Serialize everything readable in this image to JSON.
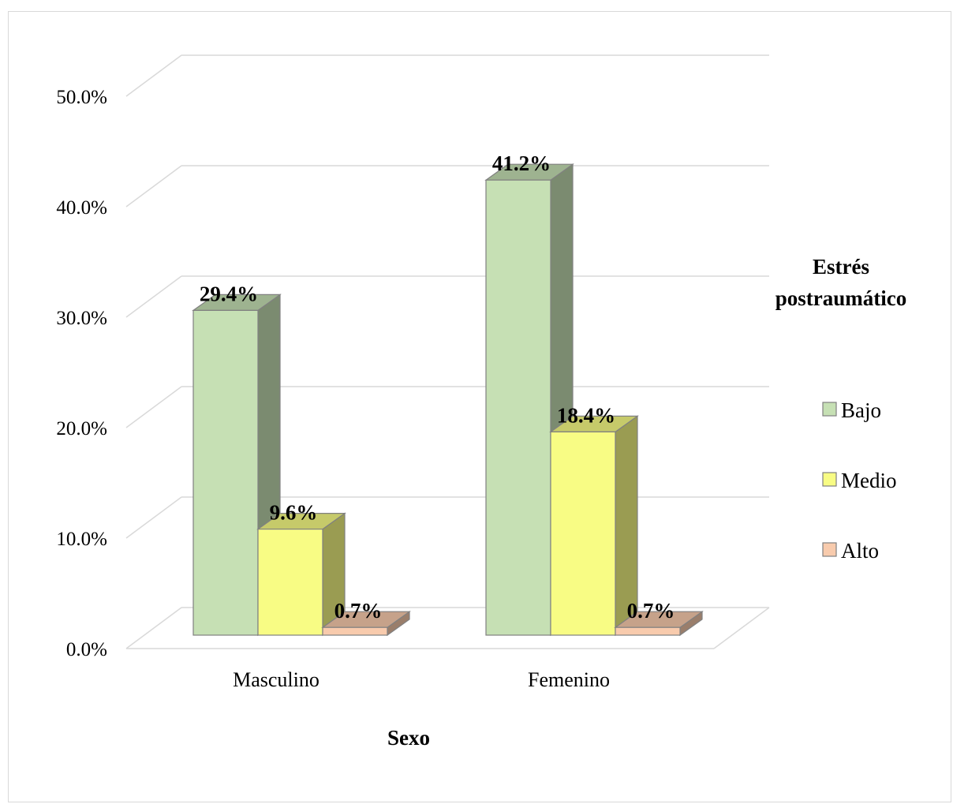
{
  "chart_data": {
    "type": "bar",
    "variant": "3d-clustered-column",
    "categories": [
      "Masculino",
      "Femenino"
    ],
    "series": [
      {
        "name": "Bajo",
        "values": [
          29.4,
          41.2
        ],
        "labels": [
          "29.4%",
          "41.2%"
        ],
        "color": "#c6e0b4"
      },
      {
        "name": "Medio",
        "values": [
          9.6,
          18.4
        ],
        "labels": [
          "9.6%",
          "18.4%"
        ],
        "color": "#f8fc84"
      },
      {
        "name": "Alto",
        "values": [
          0.7,
          0.7
        ],
        "labels": [
          "0.7%",
          "0.7%"
        ],
        "color": "#f8cbad"
      }
    ],
    "xlabel": "Sexo",
    "ylabel": "",
    "ylim": [
      0,
      50
    ],
    "yticks": [
      "0.0%",
      "10.0%",
      "20.0%",
      "30.0%",
      "40.0%",
      "50.0%"
    ],
    "grid": true,
    "legend": {
      "title": "Estrés postraumático",
      "position": "right"
    }
  }
}
